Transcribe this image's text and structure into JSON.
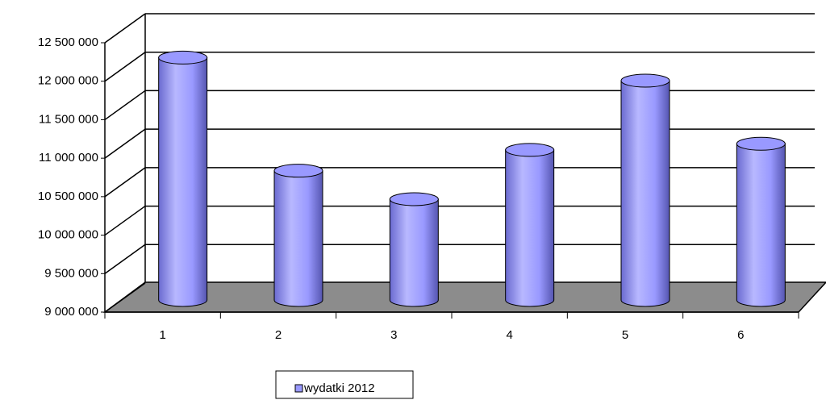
{
  "chart_data": {
    "type": "bar",
    "categories": [
      "1",
      "2",
      "3",
      "4",
      "5",
      "6"
    ],
    "series": [
      {
        "name": "wydatki 2012",
        "color": "#9999ff",
        "values": [
          12150000,
          10680000,
          10310000,
          10950000,
          11850000,
          11030000
        ]
      }
    ],
    "ylim": [
      9000000,
      12500000
    ],
    "yticks": [
      {
        "value": 9000000,
        "label": "9 000 000"
      },
      {
        "value": 9500000,
        "label": "9 500 000"
      },
      {
        "value": 10000000,
        "label": "10 000 000"
      },
      {
        "value": 10500000,
        "label": "10 500 000"
      },
      {
        "value": 11000000,
        "label": "11 000 000"
      },
      {
        "value": 11500000,
        "label": "11 500 000"
      },
      {
        "value": 12000000,
        "label": "12 000 000"
      },
      {
        "value": 12500000,
        "label": "12 500 000"
      }
    ],
    "grid": true,
    "legend": "bottom"
  }
}
